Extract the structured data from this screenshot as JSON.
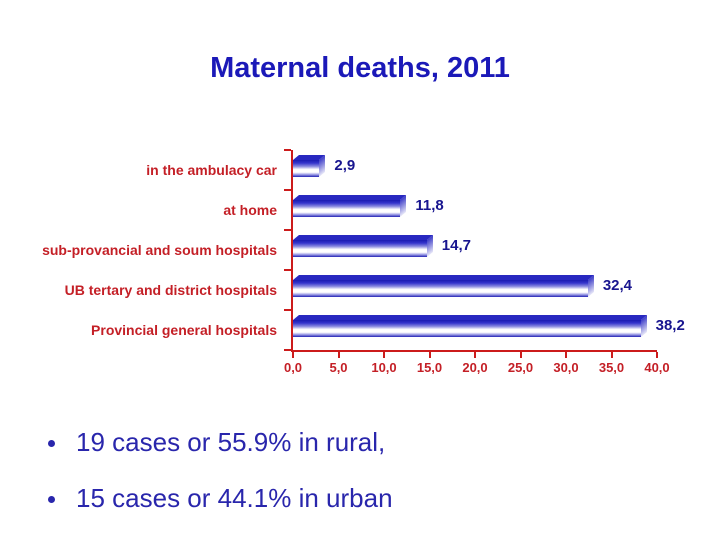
{
  "title": "Maternal deaths, 2011",
  "chart_data": {
    "type": "bar",
    "orientation": "horizontal",
    "categories": [
      "in the ambulacy car",
      "at home",
      "sub-provancial and soum hospitals",
      "UB tertary and district hospitals",
      "Provincial general hospitals"
    ],
    "values": [
      2.9,
      11.8,
      14.7,
      32.4,
      38.2
    ],
    "value_labels": [
      "2,9",
      "11,8",
      "14,7",
      "32,4",
      "38,2"
    ],
    "xlim": [
      0,
      40
    ],
    "x_tick_labels": [
      "0,0",
      "5,0",
      "10,0",
      "15,0",
      "20,0",
      "25,0",
      "30,0",
      "35,0",
      "40,0"
    ],
    "grid": false,
    "legend": "none",
    "title": "Maternal deaths, 2011"
  },
  "bullets": [
    "19 cases or 55.9% in rural,",
    "15 cases or 44.1% in urban"
  ],
  "colors": {
    "background": "#ffffff",
    "title_text": "#1b19b8",
    "bullet_text": "#2926ac",
    "category_label": "#c41f26",
    "axis": "#cc1b1b",
    "value_label": "#18158f",
    "bar_blue": "#2525c0"
  }
}
